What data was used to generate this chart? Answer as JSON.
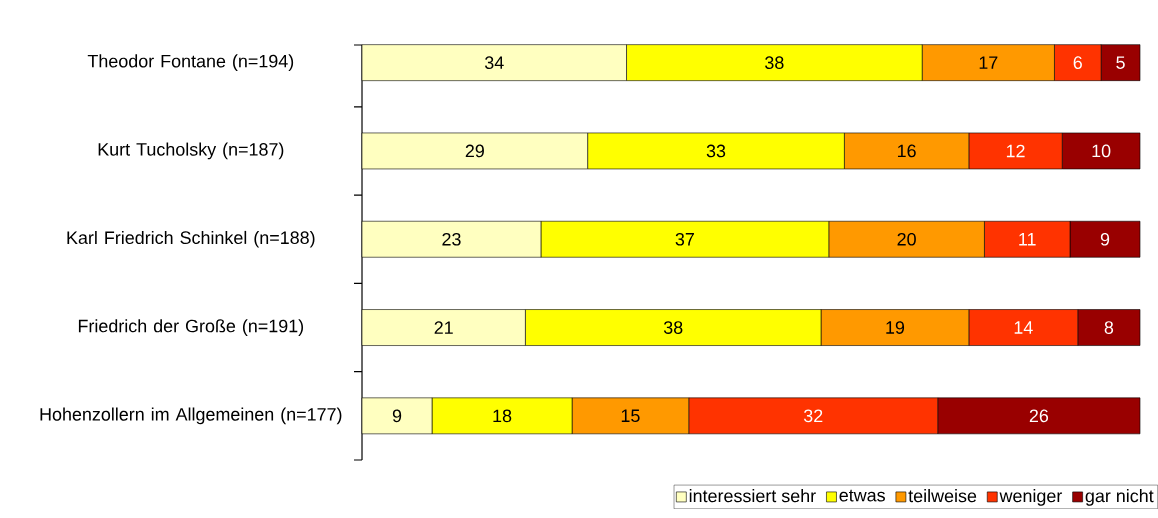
{
  "chart_data": {
    "type": "bar",
    "orientation": "horizontal",
    "stacked": true,
    "categories": [
      "Theodor Fontane (n=194)",
      "Kurt Tucholsky (n=187)",
      "Karl Friedrich Schinkel (n=188)",
      "Friedrich der Große (n=191)",
      "Hohenzollern im Allgemeinen (n=177)"
    ],
    "series": [
      {
        "name": "interessiert sehr",
        "color": "#ffffc0",
        "values": [
          34,
          29,
          23,
          21,
          9
        ]
      },
      {
        "name": "etwas",
        "color": "#ffff00",
        "values": [
          38,
          33,
          37,
          38,
          18
        ]
      },
      {
        "name": "teilweise",
        "color": "#ff9900",
        "values": [
          17,
          16,
          20,
          19,
          15
        ]
      },
      {
        "name": "weniger",
        "color": "#ff3300",
        "values": [
          6,
          12,
          11,
          14,
          32
        ]
      },
      {
        "name": "gar nicht",
        "color": "#990000",
        "values": [
          5,
          10,
          9,
          8,
          26
        ]
      }
    ],
    "xlim": [
      0,
      100
    ],
    "data_labels": true,
    "legend": "bottom",
    "tick_labels": "y"
  }
}
